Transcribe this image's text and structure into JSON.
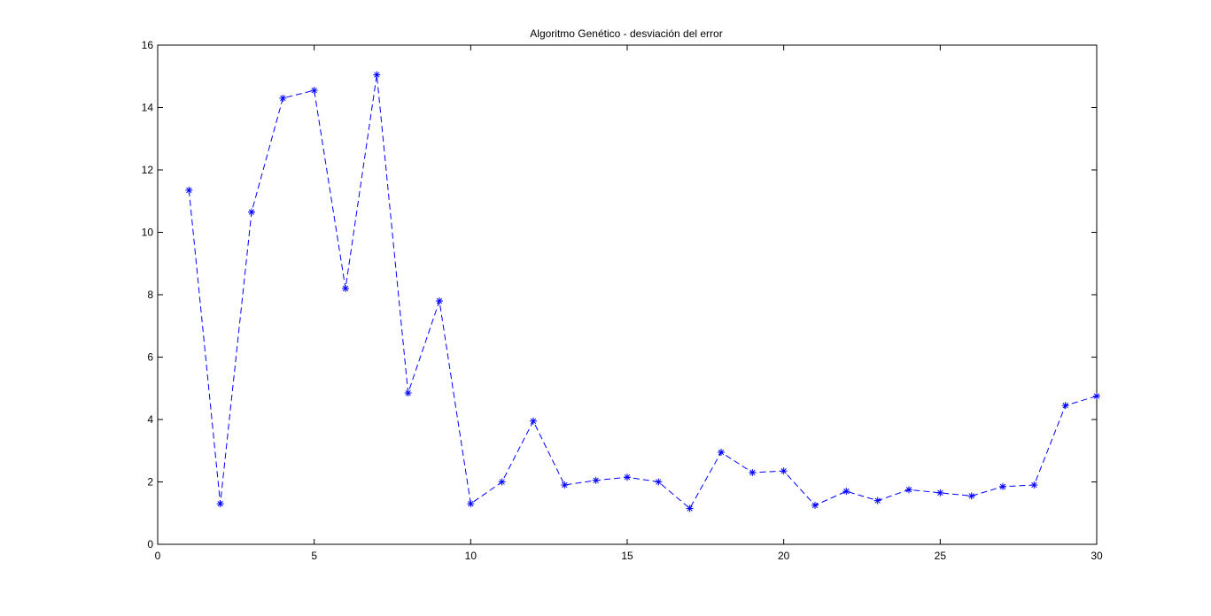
{
  "chart_data": {
    "type": "line",
    "title": "Algoritmo Genético  - desviación del error",
    "xlabel": "",
    "ylabel": "",
    "xlim": [
      0,
      30
    ],
    "ylim": [
      0,
      16
    ],
    "xticks": [
      0,
      5,
      10,
      15,
      20,
      25,
      30
    ],
    "yticks": [
      0,
      2,
      4,
      6,
      8,
      10,
      12,
      14,
      16
    ],
    "grid": false,
    "series": [
      {
        "color": "#0000ff",
        "line_style": "dashed",
        "marker": "asterisk",
        "x": [
          1,
          2,
          3,
          4,
          5,
          6,
          7,
          8,
          9,
          10,
          11,
          12,
          13,
          14,
          15,
          16,
          17,
          18,
          19,
          20,
          21,
          22,
          23,
          24,
          25,
          26,
          27,
          28,
          29,
          30
        ],
        "y": [
          11.35,
          1.3,
          10.65,
          14.3,
          14.55,
          8.2,
          15.05,
          4.85,
          7.8,
          1.3,
          2.0,
          3.95,
          1.9,
          2.05,
          2.15,
          2.0,
          1.15,
          2.95,
          2.3,
          2.35,
          1.25,
          1.7,
          1.4,
          1.75,
          1.65,
          1.55,
          1.85,
          1.9,
          4.45,
          4.75
        ]
      }
    ]
  }
}
